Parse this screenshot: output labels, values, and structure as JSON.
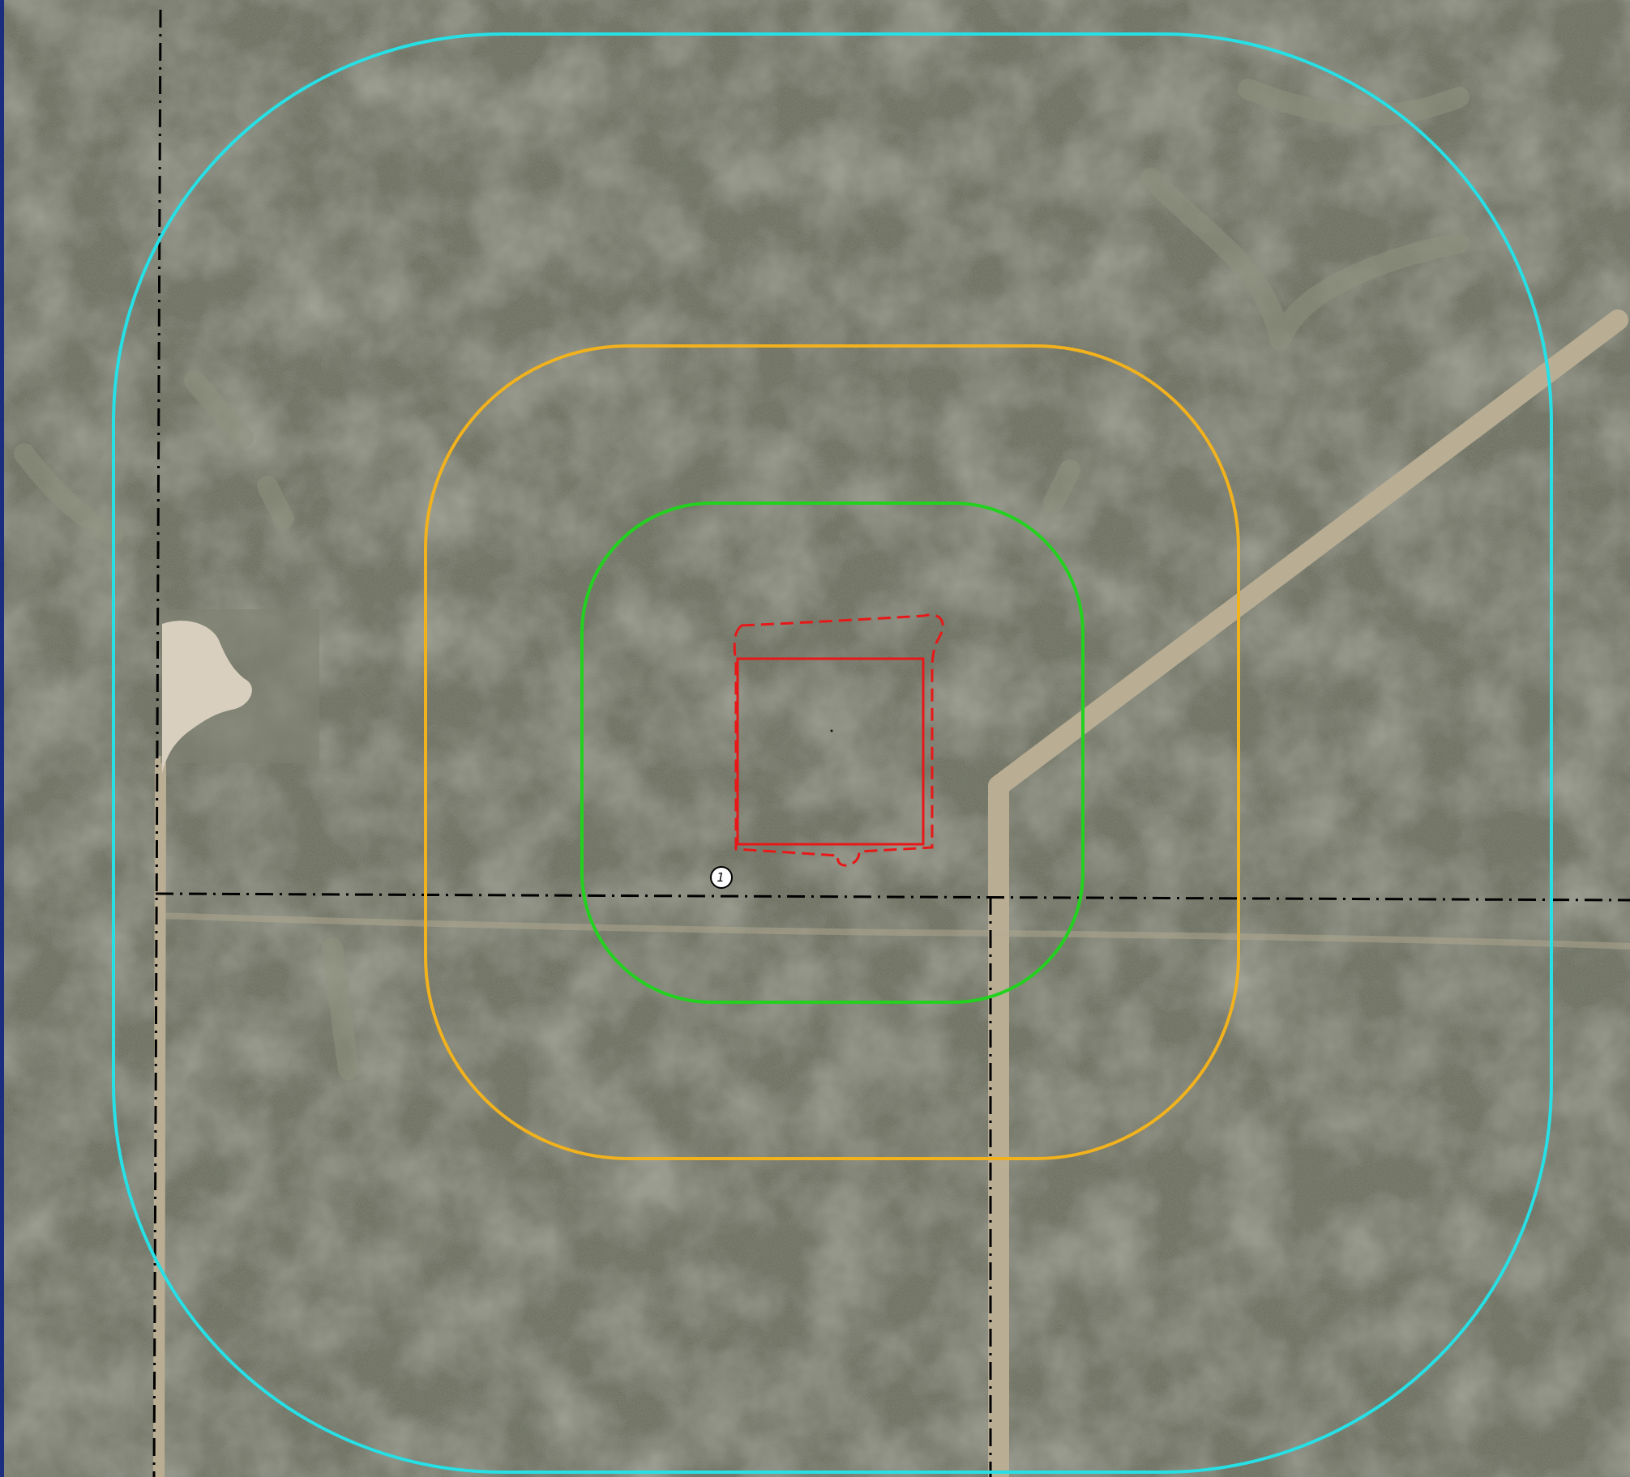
{
  "map": {
    "marker": {
      "label": "1"
    },
    "colors": {
      "terrain": "#6f7263",
      "road": "#b9ad94",
      "pad": "#d8cfbf",
      "outer_buffer": "#27e0e6",
      "middle_buffer": "#f2b21d",
      "inner_buffer": "#23d11f",
      "site": "#e81818",
      "section_lines": "#000000",
      "left_border": "#1c2d80"
    }
  }
}
